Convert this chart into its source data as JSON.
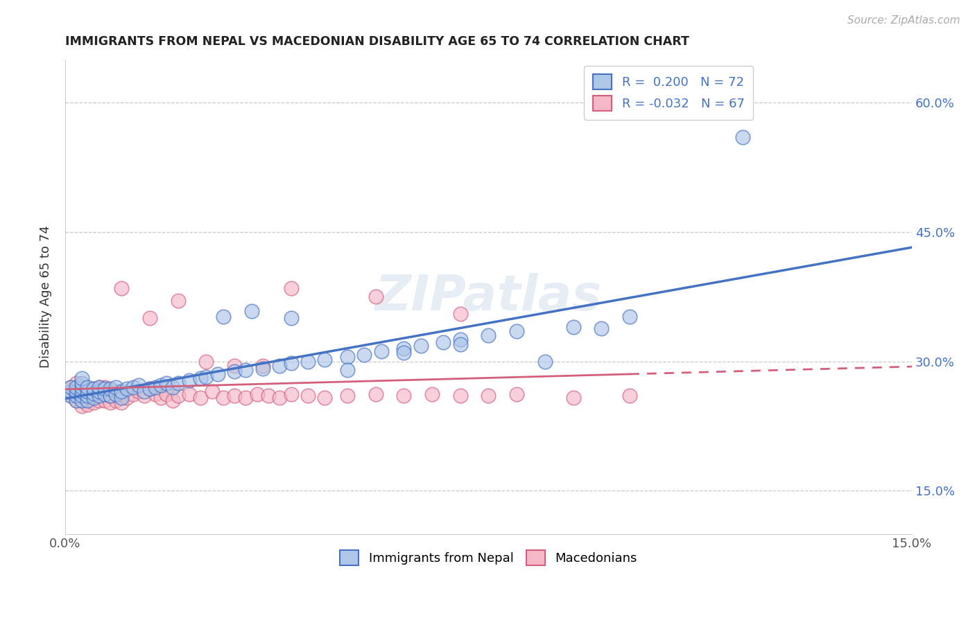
{
  "title": "IMMIGRANTS FROM NEPAL VS MACEDONIAN DISABILITY AGE 65 TO 74 CORRELATION CHART",
  "source": "Source: ZipAtlas.com",
  "ylabel": "Disability Age 65 to 74",
  "xlim": [
    0.0,
    0.15
  ],
  "ylim": [
    0.1,
    0.65
  ],
  "nepal_R": 0.2,
  "nepal_N": 72,
  "macedonian_R": -0.032,
  "macedonian_N": 67,
  "nepal_color": "#aec6e8",
  "nepal_line_color": "#4472c4",
  "macedonian_color": "#f4b8c8",
  "macedonian_line_color": "#d45f7a",
  "legend_label_nepal": "Immigrants from Nepal",
  "legend_label_macedonian": "Macedonians",
  "background_color": "#ffffff",
  "grid_color": "#c8c8c8",
  "nepal_x": [
    0.001,
    0.001,
    0.001,
    0.002,
    0.002,
    0.002,
    0.002,
    0.003,
    0.003,
    0.003,
    0.003,
    0.003,
    0.003,
    0.004,
    0.004,
    0.004,
    0.004,
    0.005,
    0.005,
    0.005,
    0.006,
    0.006,
    0.006,
    0.007,
    0.007,
    0.008,
    0.008,
    0.009,
    0.009,
    0.01,
    0.01,
    0.011,
    0.012,
    0.013,
    0.014,
    0.015,
    0.016,
    0.017,
    0.018,
    0.019,
    0.02,
    0.022,
    0.024,
    0.025,
    0.027,
    0.03,
    0.032,
    0.035,
    0.038,
    0.04,
    0.043,
    0.046,
    0.05,
    0.053,
    0.056,
    0.06,
    0.063,
    0.067,
    0.07,
    0.075,
    0.08,
    0.09,
    0.1,
    0.028,
    0.033,
    0.04,
    0.05,
    0.06,
    0.07,
    0.085,
    0.095,
    0.12
  ],
  "nepal_y": [
    0.26,
    0.265,
    0.27,
    0.255,
    0.26,
    0.265,
    0.27,
    0.255,
    0.26,
    0.265,
    0.27,
    0.275,
    0.28,
    0.255,
    0.26,
    0.265,
    0.27,
    0.258,
    0.263,
    0.268,
    0.26,
    0.265,
    0.27,
    0.262,
    0.268,
    0.26,
    0.268,
    0.262,
    0.27,
    0.258,
    0.265,
    0.268,
    0.27,
    0.272,
    0.265,
    0.268,
    0.27,
    0.272,
    0.275,
    0.27,
    0.275,
    0.278,
    0.28,
    0.282,
    0.285,
    0.288,
    0.29,
    0.292,
    0.295,
    0.298,
    0.3,
    0.302,
    0.305,
    0.308,
    0.312,
    0.315,
    0.318,
    0.322,
    0.325,
    0.33,
    0.335,
    0.34,
    0.352,
    0.352,
    0.358,
    0.35,
    0.29,
    0.31,
    0.32,
    0.3,
    0.338,
    0.56
  ],
  "macedonian_x": [
    0.001,
    0.001,
    0.002,
    0.002,
    0.002,
    0.003,
    0.003,
    0.003,
    0.003,
    0.004,
    0.004,
    0.004,
    0.005,
    0.005,
    0.005,
    0.006,
    0.006,
    0.006,
    0.007,
    0.007,
    0.007,
    0.008,
    0.008,
    0.009,
    0.009,
    0.01,
    0.01,
    0.011,
    0.012,
    0.013,
    0.014,
    0.015,
    0.016,
    0.017,
    0.018,
    0.019,
    0.02,
    0.022,
    0.024,
    0.026,
    0.028,
    0.03,
    0.032,
    0.034,
    0.036,
    0.038,
    0.04,
    0.043,
    0.046,
    0.05,
    0.055,
    0.06,
    0.065,
    0.07,
    0.075,
    0.08,
    0.09,
    0.1,
    0.04,
    0.055,
    0.07,
    0.02,
    0.03,
    0.01,
    0.015,
    0.025,
    0.035
  ],
  "macedonian_y": [
    0.26,
    0.27,
    0.255,
    0.265,
    0.275,
    0.248,
    0.255,
    0.262,
    0.27,
    0.25,
    0.258,
    0.268,
    0.252,
    0.26,
    0.268,
    0.255,
    0.262,
    0.27,
    0.255,
    0.262,
    0.27,
    0.252,
    0.26,
    0.255,
    0.265,
    0.252,
    0.262,
    0.258,
    0.262,
    0.265,
    0.26,
    0.268,
    0.262,
    0.258,
    0.262,
    0.255,
    0.26,
    0.262,
    0.258,
    0.265,
    0.258,
    0.26,
    0.258,
    0.262,
    0.26,
    0.258,
    0.262,
    0.26,
    0.258,
    0.26,
    0.262,
    0.26,
    0.262,
    0.26,
    0.26,
    0.262,
    0.258,
    0.26,
    0.385,
    0.375,
    0.355,
    0.37,
    0.295,
    0.385,
    0.35,
    0.3,
    0.295
  ],
  "watermark": "ZIPatlas",
  "yticks": [
    0.15,
    0.3,
    0.45,
    0.6
  ],
  "ytick_labels": [
    "15.0%",
    "30.0%",
    "45.0%",
    "60.0%"
  ]
}
